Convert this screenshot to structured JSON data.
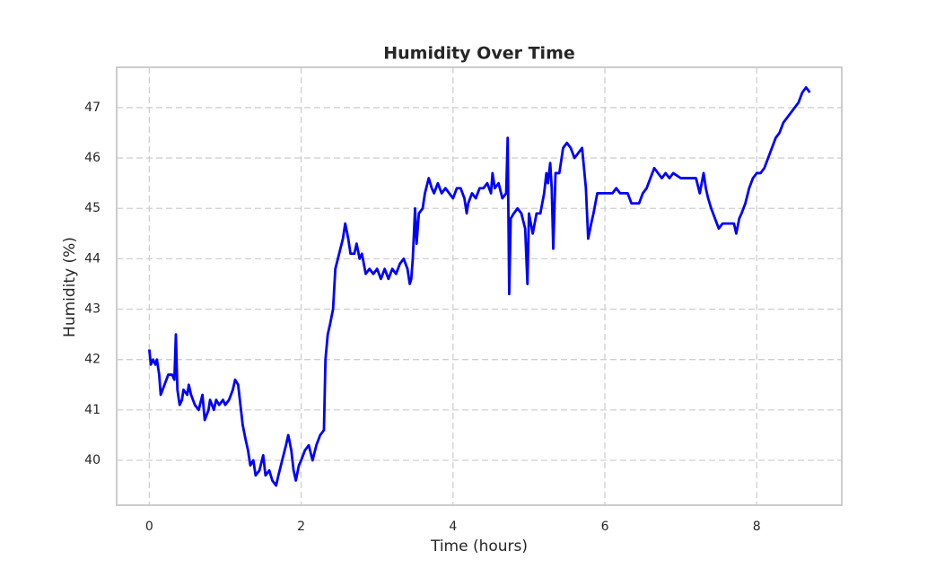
{
  "chart_data": {
    "type": "line",
    "title": "Humidity Over Time",
    "x_label": "Time (hours)",
    "y_label": "Humidity (%)",
    "color": "blue",
    "grid": true,
    "xlim": [
      -0.43,
      9.12
    ],
    "ylim": [
      39.11,
      47.8
    ],
    "xticks": [
      0,
      2,
      4,
      6,
      8
    ],
    "yticks": [
      40,
      41,
      42,
      43,
      44,
      45,
      46,
      47
    ],
    "x": [
      0.0,
      0.02,
      0.05,
      0.08,
      0.1,
      0.13,
      0.15,
      0.2,
      0.25,
      0.3,
      0.33,
      0.35,
      0.37,
      0.4,
      0.43,
      0.45,
      0.5,
      0.52,
      0.55,
      0.6,
      0.65,
      0.7,
      0.73,
      0.78,
      0.8,
      0.85,
      0.88,
      0.92,
      0.97,
      1.0,
      1.05,
      1.1,
      1.13,
      1.17,
      1.2,
      1.23,
      1.27,
      1.3,
      1.33,
      1.37,
      1.4,
      1.45,
      1.5,
      1.53,
      1.58,
      1.62,
      1.67,
      1.7,
      1.75,
      1.8,
      1.83,
      1.87,
      1.9,
      1.93,
      1.97,
      2.0,
      2.05,
      2.1,
      2.15,
      2.2,
      2.25,
      2.3,
      2.32,
      2.35,
      2.38,
      2.42,
      2.45,
      2.5,
      2.55,
      2.58,
      2.62,
      2.65,
      2.7,
      2.73,
      2.77,
      2.8,
      2.85,
      2.9,
      2.95,
      3.0,
      3.05,
      3.1,
      3.15,
      3.2,
      3.25,
      3.3,
      3.35,
      3.4,
      3.43,
      3.45,
      3.47,
      3.5,
      3.52,
      3.55,
      3.6,
      3.63,
      3.68,
      3.72,
      3.75,
      3.8,
      3.85,
      3.9,
      3.95,
      4.0,
      4.05,
      4.1,
      4.15,
      4.18,
      4.2,
      4.25,
      4.3,
      4.35,
      4.4,
      4.45,
      4.5,
      4.52,
      4.55,
      4.6,
      4.65,
      4.7,
      4.72,
      4.73,
      4.74,
      4.76,
      4.8,
      4.85,
      4.9,
      4.95,
      4.98,
      5.0,
      5.05,
      5.1,
      5.15,
      5.2,
      5.23,
      5.25,
      5.28,
      5.3,
      5.32,
      5.35,
      5.4,
      5.45,
      5.5,
      5.55,
      5.6,
      5.65,
      5.7,
      5.75,
      5.78,
      5.82,
      5.85,
      5.9,
      6.0,
      6.1,
      6.15,
      6.2,
      6.3,
      6.35,
      6.45,
      6.5,
      6.55,
      6.6,
      6.65,
      6.7,
      6.75,
      6.8,
      6.85,
      6.9,
      7.0,
      7.1,
      7.2,
      7.25,
      7.3,
      7.33,
      7.36,
      7.4,
      7.45,
      7.5,
      7.55,
      7.6,
      7.65,
      7.7,
      7.73,
      7.77,
      7.8,
      7.85,
      7.9,
      7.95,
      8.0,
      8.05,
      8.1,
      8.15,
      8.2,
      8.25,
      8.3,
      8.35,
      8.4,
      8.45,
      8.5,
      8.55,
      8.6,
      8.65,
      8.7
    ],
    "values": [
      42.2,
      41.9,
      42.0,
      41.9,
      42.0,
      41.7,
      41.3,
      41.5,
      41.7,
      41.7,
      41.6,
      42.5,
      41.4,
      41.1,
      41.2,
      41.4,
      41.3,
      41.5,
      41.3,
      41.1,
      41.0,
      41.3,
      40.8,
      41.0,
      41.2,
      41.0,
      41.2,
      41.1,
      41.2,
      41.1,
      41.2,
      41.4,
      41.6,
      41.5,
      41.1,
      40.7,
      40.4,
      40.2,
      39.9,
      40.0,
      39.7,
      39.8,
      40.1,
      39.7,
      39.8,
      39.6,
      39.5,
      39.7,
      40.0,
      40.3,
      40.5,
      40.2,
      39.8,
      39.6,
      39.9,
      40.0,
      40.2,
      40.3,
      40.0,
      40.3,
      40.5,
      40.6,
      42.0,
      42.5,
      42.7,
      43.0,
      43.8,
      44.1,
      44.4,
      44.7,
      44.4,
      44.1,
      44.1,
      44.3,
      44.0,
      44.1,
      43.7,
      43.8,
      43.7,
      43.8,
      43.6,
      43.8,
      43.6,
      43.8,
      43.7,
      43.9,
      44.0,
      43.8,
      43.5,
      43.6,
      44.0,
      45.0,
      44.3,
      44.9,
      45.0,
      45.3,
      45.6,
      45.4,
      45.3,
      45.5,
      45.3,
      45.4,
      45.3,
      45.2,
      45.4,
      45.4,
      45.2,
      44.9,
      45.1,
      45.3,
      45.2,
      45.4,
      45.4,
      45.5,
      45.3,
      45.7,
      45.4,
      45.5,
      45.2,
      45.3,
      46.4,
      44.8,
      43.3,
      44.8,
      44.9,
      45.0,
      44.9,
      44.6,
      43.5,
      44.9,
      44.5,
      44.9,
      44.9,
      45.3,
      45.7,
      45.5,
      45.9,
      45.4,
      44.2,
      45.7,
      45.7,
      46.2,
      46.3,
      46.2,
      46.0,
      46.1,
      46.2,
      45.4,
      44.4,
      44.7,
      44.9,
      45.3,
      45.3,
      45.3,
      45.4,
      45.3,
      45.3,
      45.1,
      45.1,
      45.3,
      45.4,
      45.6,
      45.8,
      45.7,
      45.6,
      45.7,
      45.6,
      45.7,
      45.6,
      45.6,
      45.6,
      45.3,
      45.7,
      45.4,
      45.2,
      45.0,
      44.8,
      44.6,
      44.7,
      44.7,
      44.7,
      44.7,
      44.5,
      44.8,
      44.9,
      45.1,
      45.4,
      45.6,
      45.7,
      45.7,
      45.8,
      46.0,
      46.2,
      46.4,
      46.5,
      46.7,
      46.8,
      46.9,
      47.0,
      47.1,
      47.3,
      47.4,
      47.3
    ]
  }
}
